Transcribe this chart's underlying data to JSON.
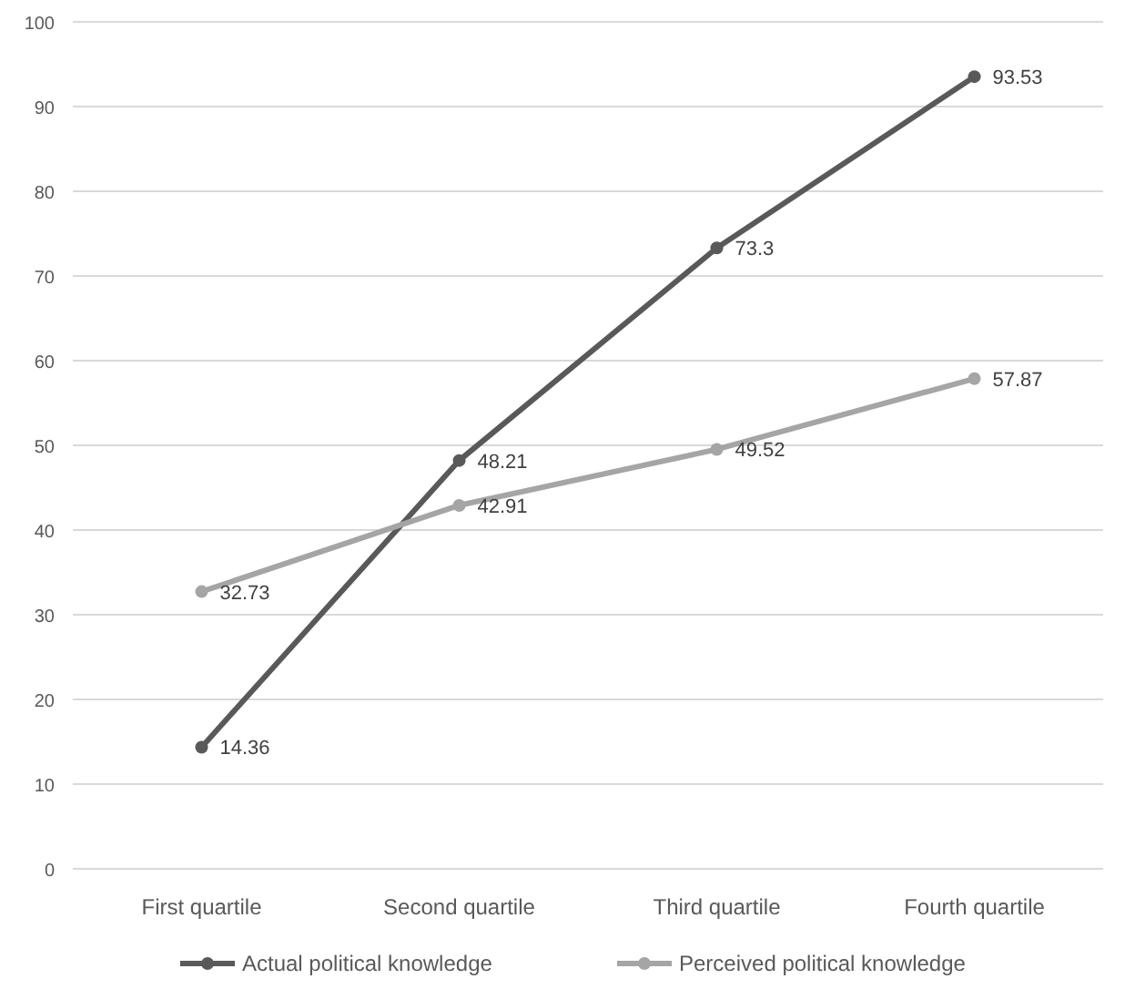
{
  "chart_data": {
    "type": "line",
    "categories": [
      "First quartile",
      "Second quartile",
      "Third quartile",
      "Fourth quartile"
    ],
    "series": [
      {
        "name": "Actual political knowledge",
        "color": "#595959",
        "values": [
          14.36,
          48.21,
          73.3,
          93.53
        ]
      },
      {
        "name": "Perceived political knowledge",
        "color": "#a5a5a5",
        "values": [
          32.73,
          42.91,
          49.52,
          57.87
        ]
      }
    ],
    "ylim": [
      0,
      100
    ],
    "yticks": [
      0,
      10,
      20,
      30,
      40,
      50,
      60,
      70,
      80,
      90,
      100
    ],
    "grid": "y",
    "legend": "bottom",
    "marker": "circle",
    "line_style": "solid",
    "data_labels": true
  }
}
